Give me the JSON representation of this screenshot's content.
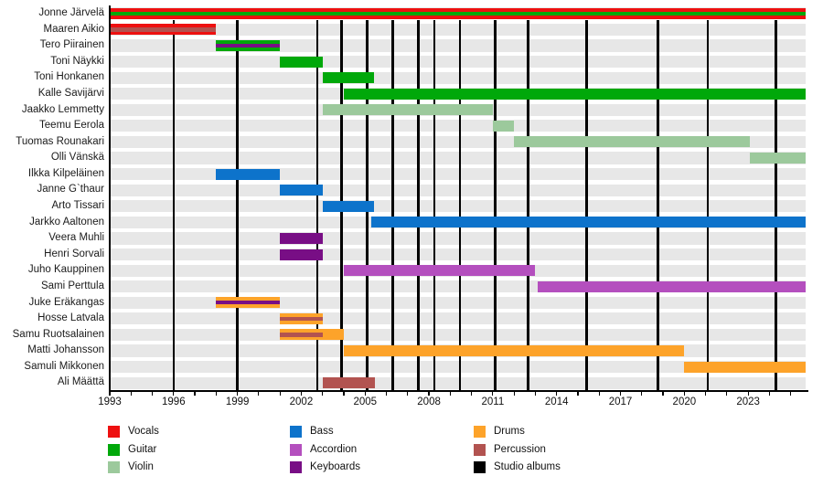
{
  "chart_data": {
    "type": "bar",
    "variant": "band-membership-gantt-timeline",
    "title": "",
    "x_axis": {
      "min": 1993,
      "max": 2025.7,
      "tick_years": [
        1993,
        1996,
        1999,
        2002,
        2005,
        2008,
        2011,
        2014,
        2017,
        2020,
        2023
      ],
      "minor_tick_step": 1,
      "minor_tick_start": 1993,
      "minor_tick_end": 2025
    },
    "colors": {
      "vocals": "#ee1010",
      "guitar": "#00a80a",
      "violin": "#9cc99c",
      "bass": "#0d73cb",
      "accordion": "#b44fbe",
      "keyboards": "#780e85",
      "drums": "#fda32a",
      "percussion": "#b25350",
      "studio_albums": "#000000",
      "row_band": "#e7e7e7"
    },
    "legend": [
      {
        "label": "Vocals",
        "key": "vocals"
      },
      {
        "label": "Guitar",
        "key": "guitar"
      },
      {
        "label": "Violin",
        "key": "violin"
      },
      {
        "label": "Bass",
        "key": "bass"
      },
      {
        "label": "Accordion",
        "key": "accordion"
      },
      {
        "label": "Keyboards",
        "key": "keyboards"
      },
      {
        "label": "Drums",
        "key": "drums"
      },
      {
        "label": "Percussion",
        "key": "percussion"
      },
      {
        "label": "Studio albums",
        "key": "studio_albums"
      }
    ],
    "album_years": [
      1996.0,
      1999.0,
      2002.75,
      2003.9,
      2005.1,
      2006.3,
      2007.5,
      2008.25,
      2009.45,
      2011.1,
      2012.65,
      2015.4,
      2018.75,
      2021.1,
      2024.3
    ],
    "rows": [
      {
        "name": "Jonne Järvelä",
        "segments": [
          {
            "instrument": "vocals",
            "start": 1993,
            "end": 2025.7,
            "layer": "main"
          },
          {
            "instrument": "guitar",
            "start": 1993,
            "end": 2025.7,
            "layer": "stripe"
          }
        ]
      },
      {
        "name": "Maaren Aikio",
        "segments": [
          {
            "instrument": "vocals",
            "start": 1993,
            "end": 1998,
            "layer": "main"
          },
          {
            "instrument": "percussion",
            "start": 1993,
            "end": 1998,
            "layer": "stripe"
          }
        ]
      },
      {
        "name": "Tero Piirainen",
        "segments": [
          {
            "instrument": "guitar",
            "start": 1998,
            "end": 2001,
            "layer": "main"
          },
          {
            "instrument": "keyboards",
            "start": 1998,
            "end": 2001,
            "layer": "stripe"
          }
        ]
      },
      {
        "name": "Toni Näykki",
        "segments": [
          {
            "instrument": "guitar",
            "start": 2001,
            "end": 2003,
            "layer": "main"
          }
        ]
      },
      {
        "name": "Toni Honkanen",
        "segments": [
          {
            "instrument": "guitar",
            "start": 2003,
            "end": 2005.4,
            "layer": "main"
          }
        ]
      },
      {
        "name": "Kalle Savijärvi",
        "segments": [
          {
            "instrument": "guitar",
            "start": 2004,
            "end": 2025.7,
            "layer": "main"
          }
        ]
      },
      {
        "name": "Jaakko Lemmetty",
        "segments": [
          {
            "instrument": "violin",
            "start": 2003,
            "end": 2011,
            "layer": "main"
          }
        ]
      },
      {
        "name": "Teemu Eerola",
        "segments": [
          {
            "instrument": "violin",
            "start": 2011,
            "end": 2012,
            "layer": "main"
          }
        ]
      },
      {
        "name": "Tuomas Rounakari",
        "segments": [
          {
            "instrument": "violin",
            "start": 2012,
            "end": 2023.1,
            "layer": "main"
          }
        ]
      },
      {
        "name": "Olli Vänskä",
        "segments": [
          {
            "instrument": "violin",
            "start": 2023.1,
            "end": 2025.7,
            "layer": "main"
          }
        ]
      },
      {
        "name": "Ilkka Kilpeläinen",
        "segments": [
          {
            "instrument": "bass",
            "start": 1998,
            "end": 2001,
            "layer": "main"
          }
        ]
      },
      {
        "name": "Janne G`thaur",
        "segments": [
          {
            "instrument": "bass",
            "start": 2001,
            "end": 2003,
            "layer": "main"
          }
        ]
      },
      {
        "name": "Arto Tissari",
        "segments": [
          {
            "instrument": "bass",
            "start": 2003,
            "end": 2005.4,
            "layer": "main"
          }
        ]
      },
      {
        "name": "Jarkko Aaltonen",
        "segments": [
          {
            "instrument": "bass",
            "start": 2005.3,
            "end": 2025.7,
            "layer": "main"
          }
        ]
      },
      {
        "name": "Veera Muhli",
        "segments": [
          {
            "instrument": "keyboards",
            "start": 2001,
            "end": 2003,
            "layer": "main"
          }
        ]
      },
      {
        "name": "Henri Sorvali",
        "segments": [
          {
            "instrument": "keyboards",
            "start": 2001,
            "end": 2003,
            "layer": "main"
          }
        ]
      },
      {
        "name": "Juho Kauppinen",
        "segments": [
          {
            "instrument": "accordion",
            "start": 2004,
            "end": 2013,
            "layer": "main"
          }
        ]
      },
      {
        "name": "Sami Perttula",
        "segments": [
          {
            "instrument": "accordion",
            "start": 2013.1,
            "end": 2025.7,
            "layer": "main"
          }
        ]
      },
      {
        "name": "Juke Eräkangas",
        "segments": [
          {
            "instrument": "drums",
            "start": 1998,
            "end": 2001,
            "layer": "main"
          },
          {
            "instrument": "keyboards",
            "start": 1998,
            "end": 2001,
            "layer": "stripe"
          }
        ]
      },
      {
        "name": "Hosse Latvala",
        "segments": [
          {
            "instrument": "drums",
            "start": 2001,
            "end": 2003,
            "layer": "main"
          },
          {
            "instrument": "percussion",
            "start": 2001,
            "end": 2003,
            "layer": "stripe"
          }
        ]
      },
      {
        "name": "Samu Ruotsalainen",
        "segments": [
          {
            "instrument": "drums",
            "start": 2001,
            "end": 2004,
            "layer": "main"
          },
          {
            "instrument": "percussion",
            "start": 2001,
            "end": 2003,
            "layer": "stripe"
          }
        ]
      },
      {
        "name": "Matti Johansson",
        "segments": [
          {
            "instrument": "drums",
            "start": 2004,
            "end": 2020,
            "layer": "main"
          }
        ]
      },
      {
        "name": "Samuli Mikkonen",
        "segments": [
          {
            "instrument": "drums",
            "start": 2020,
            "end": 2025.7,
            "layer": "main"
          }
        ]
      },
      {
        "name": "Ali Määttä",
        "segments": [
          {
            "instrument": "percussion",
            "start": 2003,
            "end": 2005.45,
            "layer": "main"
          }
        ]
      }
    ]
  }
}
